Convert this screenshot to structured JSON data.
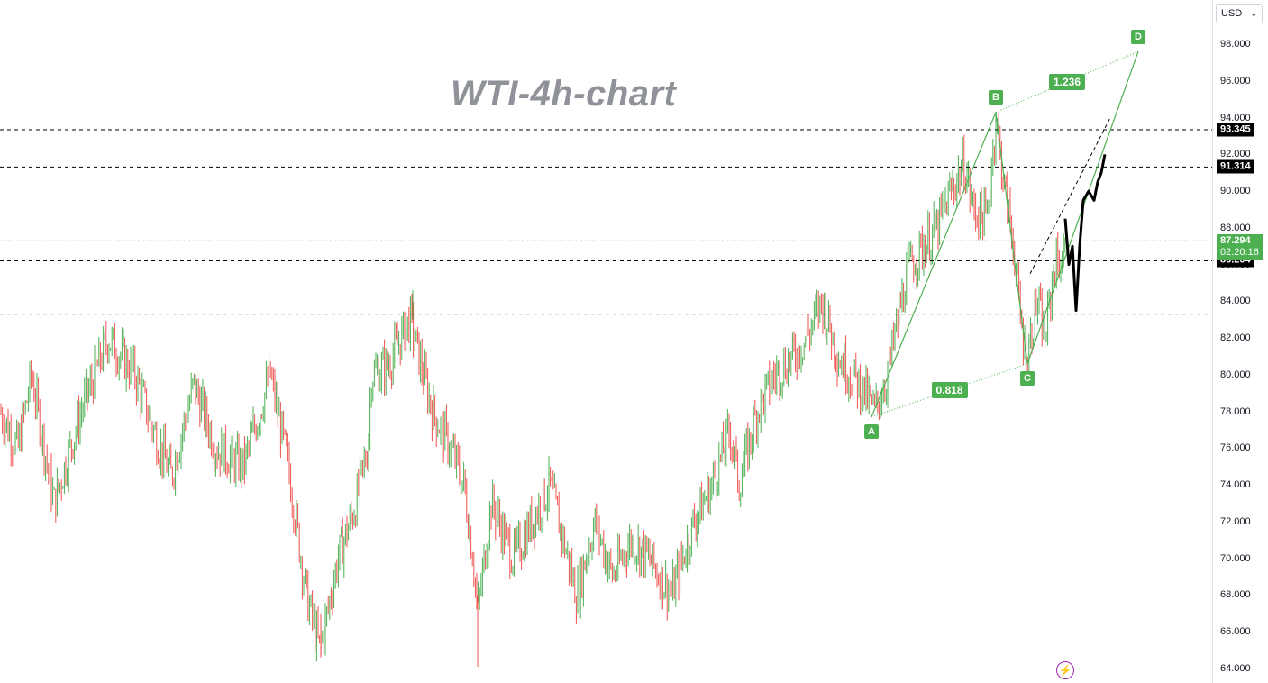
{
  "title": "WTI-4h-chart",
  "currency_select": {
    "value": "USD",
    "chevron_icon": "chevron-down-icon"
  },
  "lightning_icon": "lightning-icon",
  "colors": {
    "up": "#4caf50",
    "down": "#ef5350",
    "pattern": "#4caf50",
    "level_line": "#000000",
    "grid": "#e0e3eb"
  },
  "chart_data": {
    "type": "candlestick",
    "title": "WTI-4h-chart",
    "ylim": [
      63.5,
      99.5
    ],
    "y_ticks": [
      "64.000",
      "66.000",
      "68.000",
      "70.000",
      "72.000",
      "74.000",
      "76.000",
      "78.000",
      "80.000",
      "82.000",
      "84.000",
      "86.000",
      "88.000",
      "90.000",
      "92.000",
      "94.000",
      "96.000",
      "98.000"
    ],
    "horizontal_levels": [
      {
        "price": 93.345,
        "label": "93.345"
      },
      {
        "price": 91.314,
        "label": "91.314"
      },
      {
        "price": 86.204,
        "label": "86.204"
      },
      {
        "price": 83.3,
        "label": ""
      }
    ],
    "current_price": {
      "value": "87.294",
      "countdown": "02:20:16",
      "price": 87.294
    },
    "price_path": [
      [
        0,
        78
      ],
      [
        20,
        76
      ],
      [
        35,
        80
      ],
      [
        60,
        73
      ],
      [
        90,
        78
      ],
      [
        120,
        82
      ],
      [
        150,
        80
      ],
      [
        170,
        77
      ],
      [
        190,
        74.5
      ],
      [
        215,
        79.5
      ],
      [
        240,
        76
      ],
      [
        270,
        75
      ],
      [
        300,
        80
      ],
      [
        320,
        75
      ],
      [
        340,
        68
      ],
      [
        355,
        65
      ],
      [
        375,
        70
      ],
      [
        395,
        73
      ],
      [
        408,
        76
      ],
      [
        412,
        80
      ],
      [
        430,
        80.5
      ],
      [
        455,
        83
      ],
      [
        465,
        81
      ],
      [
        480,
        78
      ],
      [
        500,
        76
      ],
      [
        515,
        74
      ],
      [
        525,
        70
      ],
      [
        530,
        67
      ],
      [
        545,
        73
      ],
      [
        570,
        70
      ],
      [
        590,
        72
      ],
      [
        610,
        74
      ],
      [
        630,
        70
      ],
      [
        640,
        68
      ],
      [
        660,
        72
      ],
      [
        680,
        69
      ],
      [
        700,
        71
      ],
      [
        720,
        70
      ],
      [
        745,
        68
      ],
      [
        770,
        72
      ],
      [
        790,
        74
      ],
      [
        810,
        77
      ],
      [
        820,
        74
      ],
      [
        840,
        78
      ],
      [
        860,
        80
      ],
      [
        880,
        81
      ],
      [
        895,
        82
      ],
      [
        912,
        84
      ],
      [
        930,
        81
      ],
      [
        945,
        80
      ],
      [
        960,
        79
      ],
      [
        970,
        78
      ],
      [
        985,
        80
      ],
      [
        1000,
        84
      ],
      [
        1010,
        86
      ],
      [
        1025,
        87
      ],
      [
        1040,
        88
      ],
      [
        1055,
        90
      ],
      [
        1070,
        91.5
      ],
      [
        1080,
        89
      ],
      [
        1095,
        88.5
      ],
      [
        1105,
        94
      ],
      [
        1115,
        90
      ],
      [
        1125,
        87
      ],
      [
        1132,
        83
      ],
      [
        1140,
        81
      ],
      [
        1150,
        84
      ],
      [
        1160,
        82
      ],
      [
        1170,
        86
      ],
      [
        1182,
        86.5
      ]
    ],
    "forecast_path": [
      [
        1182,
        88.5
      ],
      [
        1186,
        86
      ],
      [
        1190,
        87
      ],
      [
        1194,
        83.5
      ],
      [
        1198,
        87
      ],
      [
        1202,
        89.5
      ],
      [
        1208,
        90
      ],
      [
        1214,
        89.5
      ],
      [
        1218,
        90.5
      ],
      [
        1222,
        91
      ],
      [
        1226,
        92
      ]
    ],
    "harmonic_pattern": {
      "points": [
        {
          "label": "A",
          "price": 77.7
        },
        {
          "label": "B",
          "price": 94.3
        },
        {
          "label": "C",
          "price": 80.6
        },
        {
          "label": "D",
          "price": 97.6
        }
      ],
      "ratios": [
        "0.818",
        "1.236"
      ]
    }
  }
}
